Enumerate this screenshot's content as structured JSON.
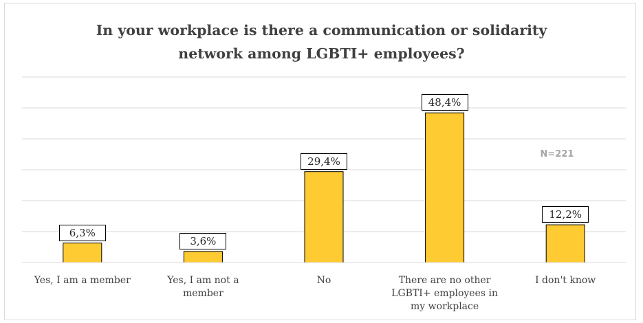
{
  "chart_data": {
    "type": "bar",
    "title_lines": [
      "In your workplace is there a communication or solidarity",
      "network among LGBTI+ employees?"
    ],
    "categories": [
      [
        "Yes, I am a member"
      ],
      [
        "Yes, I am not a",
        "member"
      ],
      [
        "No"
      ],
      [
        "There are no other",
        "LGBTI+ employees in",
        "my workplace"
      ],
      [
        "I don't know"
      ]
    ],
    "values": [
      6.3,
      3.6,
      29.4,
      48.4,
      12.2
    ],
    "data_labels": [
      "6,3%",
      "3,6%",
      "29,4%",
      "48,4%",
      "12,2%"
    ],
    "annotation": "N=221",
    "ylim": [
      0,
      60
    ],
    "grid": true,
    "bar_color": "#fecb33",
    "bar_edge_color": "#000000",
    "gridline_color": "#d9d9d9"
  }
}
